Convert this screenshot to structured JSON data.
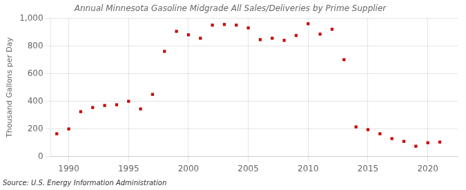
{
  "chart_data": {
    "type": "scatter",
    "title": "Annual Minnesota Gasoline Midgrade All Sales/Deliveries by Prime Supplier",
    "ylabel": "Thousand Gallons per Day",
    "source": "Source: U.S. Energy Information Administration",
    "x": [
      1989,
      1990,
      1991,
      1992,
      1993,
      1994,
      1995,
      1996,
      1997,
      1998,
      1999,
      2000,
      2001,
      2002,
      2003,
      2004,
      2005,
      2006,
      2007,
      2008,
      2009,
      2010,
      2011,
      2012,
      2013,
      2014,
      2015,
      2016,
      2017,
      2018,
      2019,
      2020,
      2021
    ],
    "values": [
      165,
      200,
      325,
      355,
      370,
      375,
      400,
      345,
      450,
      760,
      905,
      880,
      855,
      950,
      955,
      950,
      930,
      845,
      855,
      840,
      875,
      960,
      885,
      920,
      700,
      215,
      195,
      165,
      130,
      110,
      75,
      100,
      105
    ],
    "color": "#cc0000",
    "marker": "square",
    "xlim": [
      1988.5,
      2022.5
    ],
    "xticks": [
      1990,
      1995,
      2000,
      2005,
      2010,
      2015,
      2020
    ],
    "ylim": [
      0,
      1000
    ],
    "yticks": [
      0,
      200,
      400,
      600,
      800,
      {
        "value": 1000,
        "label": "1,000"
      }
    ],
    "grid": true
  }
}
